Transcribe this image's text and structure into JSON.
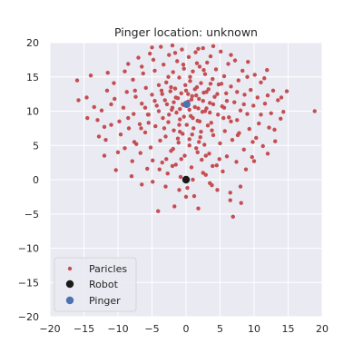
{
  "chart_data": {
    "type": "scatter",
    "title": "Pinger location: unknown",
    "xlabel": "",
    "ylabel": "",
    "xlim": [
      -20,
      20
    ],
    "ylim": [
      -20,
      20
    ],
    "xticks": [
      -20,
      -15,
      -10,
      -5,
      0,
      5,
      10,
      15,
      20
    ],
    "yticks": [
      -20,
      -15,
      -10,
      -5,
      0,
      5,
      10,
      15,
      20
    ],
    "grid": true,
    "legend_position": "lower-left",
    "legend": [
      "Paricles",
      "Robot",
      "Pinger"
    ],
    "colors": {
      "plot_background": "#eaeaf2",
      "grid": "#ffffff",
      "particles": "#c44e52",
      "robot": "#1a1a1a",
      "pinger": "#4c72b0"
    },
    "series": [
      {
        "name": "Paricles",
        "marker": "small-circle",
        "points": [
          [
            -16.0,
            14.5
          ],
          [
            -15.8,
            11.6
          ],
          [
            -14.0,
            15.2
          ],
          [
            -14.6,
            12.0
          ],
          [
            -13.0,
            8.7
          ],
          [
            -12.4,
            10.1
          ],
          [
            -12.8,
            6.3
          ],
          [
            -11.8,
            5.8
          ],
          [
            -11.6,
            13.0
          ],
          [
            -11.0,
            8.0
          ],
          [
            -10.3,
            1.4
          ],
          [
            -10.6,
            14.1
          ],
          [
            -10.5,
            11.8
          ],
          [
            -9.6,
            6.6
          ],
          [
            -9.2,
            10.5
          ],
          [
            -9.0,
            4.6
          ],
          [
            -8.7,
            12.8
          ],
          [
            -8.5,
            16.9
          ],
          [
            -8.4,
            7.5
          ],
          [
            -7.9,
            2.7
          ],
          [
            -7.8,
            14.6
          ],
          [
            -7.7,
            9.6
          ],
          [
            -7.4,
            12.1
          ],
          [
            -7.3,
            5.2
          ],
          [
            -7.0,
            17.8
          ],
          [
            -6.8,
            8.1
          ],
          [
            -6.7,
            3.9
          ],
          [
            -6.5,
            11.1
          ],
          [
            -6.3,
            15.5
          ],
          [
            -6.0,
            6.9
          ],
          [
            -5.9,
            13.4
          ],
          [
            -5.7,
            1.6
          ],
          [
            -5.5,
            9.5
          ],
          [
            -5.3,
            18.4
          ],
          [
            -5.2,
            4.7
          ],
          [
            -5.0,
            12.4
          ],
          [
            -4.9,
            -0.3
          ],
          [
            -4.6,
            15.9
          ],
          [
            -4.5,
            7.8
          ],
          [
            -4.3,
            10.8
          ],
          [
            -4.1,
            -4.6
          ],
          [
            -4.0,
            13.8
          ],
          [
            -3.8,
            5.7
          ],
          [
            -3.7,
            19.4
          ],
          [
            -3.5,
            2.5
          ],
          [
            -3.4,
            9.0
          ],
          [
            -3.3,
            16.8
          ],
          [
            -3.1,
            11.6
          ],
          [
            -3.0,
            6.3
          ],
          [
            -2.9,
            14.2
          ],
          [
            -2.7,
            0.9
          ],
          [
            -2.6,
            8.4
          ],
          [
            -2.5,
            18.2
          ],
          [
            -2.3,
            12.9
          ],
          [
            -2.2,
            4.2
          ],
          [
            -2.1,
            10.2
          ],
          [
            -1.9,
            15.7
          ],
          [
            -1.8,
            7.2
          ],
          [
            -1.7,
            -3.9
          ],
          [
            -1.6,
            13.3
          ],
          [
            -1.5,
            2.2
          ],
          [
            -1.4,
            9.8
          ],
          [
            -1.3,
            17.3
          ],
          [
            -1.2,
            11.9
          ],
          [
            -1.1,
            5.4
          ],
          [
            -1.0,
            14.9
          ],
          [
            -0.9,
            8.8
          ],
          [
            -0.8,
            0.4
          ],
          [
            -0.7,
            12.6
          ],
          [
            -0.6,
            19.0
          ],
          [
            -0.5,
            6.7
          ],
          [
            -0.4,
            10.9
          ],
          [
            -0.3,
            16.2
          ],
          [
            -0.2,
            3.5
          ],
          [
            -0.1,
            13.8
          ],
          [
            0.1,
            8.0
          ],
          [
            0.2,
            -1.2
          ],
          [
            0.3,
            11.4
          ],
          [
            0.4,
            17.9
          ],
          [
            0.5,
            5.9
          ],
          [
            0.6,
            14.4
          ],
          [
            0.7,
            9.3
          ],
          [
            0.8,
            1.8
          ],
          [
            0.9,
            12.2
          ],
          [
            1.0,
            15.8
          ],
          [
            1.1,
            7.5
          ],
          [
            1.2,
            -2.4
          ],
          [
            1.3,
            10.6
          ],
          [
            1.4,
            18.6
          ],
          [
            1.5,
            4.6
          ],
          [
            1.6,
            13.5
          ],
          [
            1.7,
            8.6
          ],
          [
            1.8,
            -4.2
          ],
          [
            1.9,
            11.8
          ],
          [
            2.0,
            16.5
          ],
          [
            2.1,
            6.2
          ],
          [
            2.2,
            14.1
          ],
          [
            2.3,
            2.9
          ],
          [
            2.4,
            9.9
          ],
          [
            2.5,
            19.2
          ],
          [
            2.6,
            12.7
          ],
          [
            2.7,
            5.1
          ],
          [
            2.8,
            15.4
          ],
          [
            2.9,
            0.7
          ],
          [
            3.0,
            10.4
          ],
          [
            3.1,
            17.1
          ],
          [
            3.2,
            7.9
          ],
          [
            3.3,
            13.2
          ],
          [
            3.4,
            3.8
          ],
          [
            3.5,
            11.2
          ],
          [
            3.6,
            18.0
          ],
          [
            3.7,
            8.3
          ],
          [
            3.8,
            -0.8
          ],
          [
            3.9,
            14.7
          ],
          [
            4.0,
            6.5
          ],
          [
            4.2,
            12.1
          ],
          [
            4.4,
            16.1
          ],
          [
            4.5,
            2.1
          ],
          [
            4.7,
            9.5
          ],
          [
            4.8,
            13.9
          ],
          [
            5.0,
            5.3
          ],
          [
            5.1,
            18.7
          ],
          [
            5.3,
            10.7
          ],
          [
            5.4,
            1.2
          ],
          [
            5.6,
            15.1
          ],
          [
            5.7,
            7.1
          ],
          [
            5.9,
            12.6
          ],
          [
            6.0,
            3.4
          ],
          [
            6.2,
            16.9
          ],
          [
            6.3,
            9.1
          ],
          [
            6.5,
            -1.9
          ],
          [
            6.6,
            13.6
          ],
          [
            6.8,
            5.8
          ],
          [
            6.9,
            -5.4
          ],
          [
            7.1,
            11.3
          ],
          [
            7.2,
            17.4
          ],
          [
            7.4,
            2.6
          ],
          [
            7.5,
            8.7
          ],
          [
            7.7,
            14.5
          ],
          [
            7.8,
            6.8
          ],
          [
            8.0,
            10.1
          ],
          [
            8.1,
            -3.4
          ],
          [
            8.3,
            15.9
          ],
          [
            8.5,
            4.4
          ],
          [
            8.6,
            12.4
          ],
          [
            8.8,
            1.5
          ],
          [
            9.0,
            9.6
          ],
          [
            9.1,
            17.2
          ],
          [
            9.3,
            7.4
          ],
          [
            9.5,
            13.1
          ],
          [
            9.7,
            3.3
          ],
          [
            9.9,
            10.8
          ],
          [
            10.1,
            15.3
          ],
          [
            10.3,
            6.1
          ],
          [
            10.5,
            12.0
          ],
          [
            10.7,
            8.2
          ],
          [
            11.0,
            14.2
          ],
          [
            11.3,
            4.9
          ],
          [
            11.6,
            11.1
          ],
          [
            11.9,
            16.0
          ],
          [
            12.2,
            7.6
          ],
          [
            12.5,
            9.7
          ],
          [
            12.8,
            13.0
          ],
          [
            13.1,
            5.6
          ],
          [
            13.5,
            11.6
          ],
          [
            13.9,
            8.9
          ],
          [
            14.3,
            9.9
          ],
          [
            14.8,
            12.9
          ],
          [
            18.9,
            10.0
          ],
          [
            -2.0,
            10.5
          ],
          [
            -1.5,
            12.0
          ],
          [
            -0.5,
            11.0
          ],
          [
            0.5,
            10.2
          ],
          [
            1.5,
            12.3
          ],
          [
            2.5,
            11.5
          ],
          [
            3.5,
            9.8
          ],
          [
            -3.5,
            12.5
          ],
          [
            -2.5,
            9.5
          ],
          [
            0.0,
            13.0
          ],
          [
            1.0,
            9.0
          ],
          [
            2.0,
            8.5
          ],
          [
            -1.0,
            8.0
          ],
          [
            3.0,
            12.8
          ],
          [
            -4.0,
            10.0
          ],
          [
            4.0,
            11.0
          ],
          [
            -0.3,
            9.2
          ],
          [
            0.8,
            11.7
          ],
          [
            1.8,
            10.4
          ],
          [
            -1.8,
            11.3
          ],
          [
            2.8,
            10.0
          ],
          [
            -2.8,
            11.0
          ],
          [
            0.3,
            12.5
          ],
          [
            -0.9,
            10.3
          ],
          [
            1.3,
            13.2
          ],
          [
            -2.2,
            13.5
          ],
          [
            2.2,
            7.0
          ],
          [
            -3.2,
            7.5
          ],
          [
            3.8,
            7.2
          ],
          [
            -5.5,
            8.3
          ],
          [
            5.5,
            9.0
          ],
          [
            -6.0,
            10.5
          ],
          [
            6.0,
            11.5
          ],
          [
            -1.2,
            6.0
          ],
          [
            0.5,
            5.0
          ],
          [
            1.7,
            4.0
          ],
          [
            -0.7,
            3.0
          ],
          [
            2.5,
            1.0
          ],
          [
            -2.0,
            2.0
          ],
          [
            3.5,
            -0.5
          ],
          [
            -3.0,
            -1.0
          ],
          [
            4.6,
            -1.5
          ],
          [
            0.0,
            -2.5
          ],
          [
            -1.0,
            -1.5
          ],
          [
            1.0,
            0.0
          ],
          [
            5.2,
            14.0
          ],
          [
            -4.8,
            17.5
          ],
          [
            -6.5,
            16.5
          ],
          [
            6.6,
            18.2
          ],
          [
            -7.5,
            13.0
          ],
          [
            7.5,
            12.8
          ],
          [
            -8.5,
            9.0
          ],
          [
            8.5,
            11.0
          ],
          [
            -9.8,
            8.5
          ],
          [
            9.8,
            5.5
          ],
          [
            -11.0,
            11.0
          ],
          [
            11.0,
            9.5
          ],
          [
            -12.0,
            7.7
          ],
          [
            12.0,
            12.3
          ],
          [
            -13.5,
            10.6
          ],
          [
            13.0,
            7.3
          ],
          [
            -10.0,
            4.0
          ],
          [
            10.0,
            2.7
          ],
          [
            -8.0,
            0.5
          ],
          [
            8.0,
            -1.0
          ],
          [
            -6.5,
            -0.7
          ],
          [
            6.5,
            -3.0
          ],
          [
            -5.0,
            19.3
          ],
          [
            4.0,
            19.5
          ],
          [
            -2.0,
            19.6
          ],
          [
            1.8,
            19.1
          ],
          [
            -9.0,
            15.8
          ],
          [
            9.0,
            15.0
          ],
          [
            -11.5,
            15.6
          ],
          [
            11.5,
            14.8
          ],
          [
            -14.5,
            9.0
          ],
          [
            14.0,
            12.0
          ],
          [
            -12.0,
            3.5
          ],
          [
            12.0,
            3.8
          ],
          [
            0.6,
            15.0
          ],
          [
            -0.4,
            16.8
          ],
          [
            1.6,
            17.0
          ],
          [
            -1.6,
            18.5
          ],
          [
            2.6,
            16.0
          ],
          [
            -2.6,
            15.0
          ],
          [
            3.6,
            14.0
          ],
          [
            -3.6,
            13.0
          ],
          [
            4.6,
            12.5
          ],
          [
            -4.6,
            11.5
          ],
          [
            5.6,
            10.5
          ],
          [
            -5.6,
            9.5
          ],
          [
            6.6,
            8.5
          ],
          [
            -6.6,
            7.5
          ],
          [
            7.6,
            6.5
          ],
          [
            -7.6,
            5.5
          ],
          [
            0.9,
            6.6
          ],
          [
            -0.9,
            7.0
          ],
          [
            1.9,
            5.5
          ],
          [
            -1.9,
            4.5
          ],
          [
            2.9,
            3.5
          ],
          [
            -2.9,
            3.0
          ],
          [
            3.9,
            2.0
          ],
          [
            -3.9,
            1.5
          ],
          [
            4.9,
            3.0
          ],
          [
            -4.9,
            2.8
          ]
        ]
      },
      {
        "name": "Robot",
        "marker": "circle",
        "points": [
          [
            0.0,
            0.0
          ]
        ]
      },
      {
        "name": "Pinger",
        "marker": "circle",
        "points": [
          [
            0.1,
            11.0
          ]
        ]
      }
    ]
  }
}
